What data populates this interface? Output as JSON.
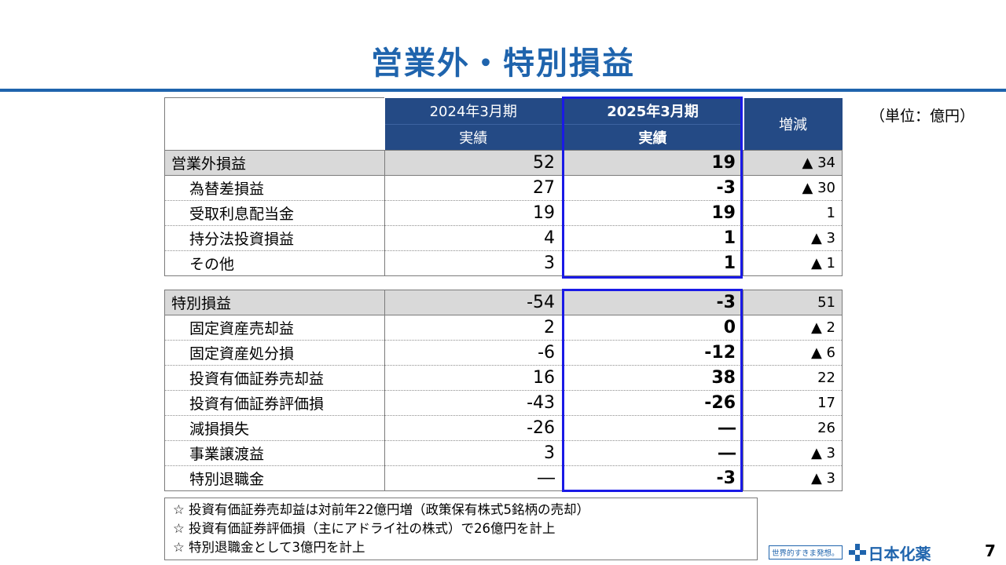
{
  "title": "営業外・特別損益",
  "unit": "（単位：億円）",
  "header": {
    "col1_line1": "2024年3月期",
    "col1_line2": "実績",
    "col2_line1": "2025年3月期",
    "col2_line2": "実績",
    "col3": "増減"
  },
  "non_operating": [
    {
      "label": "営業外損益",
      "fy2024": "52",
      "fy2025": "19",
      "change": "▲ 34"
    },
    {
      "label": "為替差損益",
      "fy2024": "27",
      "fy2025": "-3",
      "change": "▲ 30"
    },
    {
      "label": "受取利息配当金",
      "fy2024": "19",
      "fy2025": "19",
      "change": "1"
    },
    {
      "label": "持分法投資損益",
      "fy2024": "4",
      "fy2025": "1",
      "change": "▲ 3"
    },
    {
      "label": "その他",
      "fy2024": "3",
      "fy2025": "1",
      "change": "▲ 1"
    }
  ],
  "extraordinary": [
    {
      "label": "特別損益",
      "fy2024": "-54",
      "fy2025": "-3",
      "change": "51"
    },
    {
      "label": "固定資産売却益",
      "fy2024": "2",
      "fy2025": "0",
      "change": "▲ 2"
    },
    {
      "label": "固定資産処分損",
      "fy2024": "-6",
      "fy2025": "-12",
      "change": "▲ 6"
    },
    {
      "label": "投資有価証券売却益",
      "fy2024": "16",
      "fy2025": "38",
      "change": "22"
    },
    {
      "label": "投資有価証券評価損",
      "fy2024": "-43",
      "fy2025": "-26",
      "change": "17"
    },
    {
      "label": "減損損失",
      "fy2024": "-26",
      "fy2025": "―",
      "change": "26"
    },
    {
      "label": "事業譲渡益",
      "fy2024": "3",
      "fy2025": "―",
      "change": "▲ 3"
    },
    {
      "label": "特別退職金",
      "fy2024": "―",
      "fy2025": "-3",
      "change": "▲ 3"
    }
  ],
  "notes": [
    "☆ 投資有価証券売却益は対前年22億円増（政策保有株式5銘柄の売却）",
    "☆ 投資有価証券評価損（主にアドライ社の株式）で26億円を計上",
    "☆ 特別退職金として3億円を計上"
  ],
  "footer": {
    "slogan": "世界的すきま発想。",
    "brand": "日本化薬",
    "page_number": "7"
  },
  "colors": {
    "title": "#1f64ad",
    "header_bg": "#244a85",
    "section_bg": "#d9d9d9",
    "highlight_border": "#1a1ae6"
  }
}
